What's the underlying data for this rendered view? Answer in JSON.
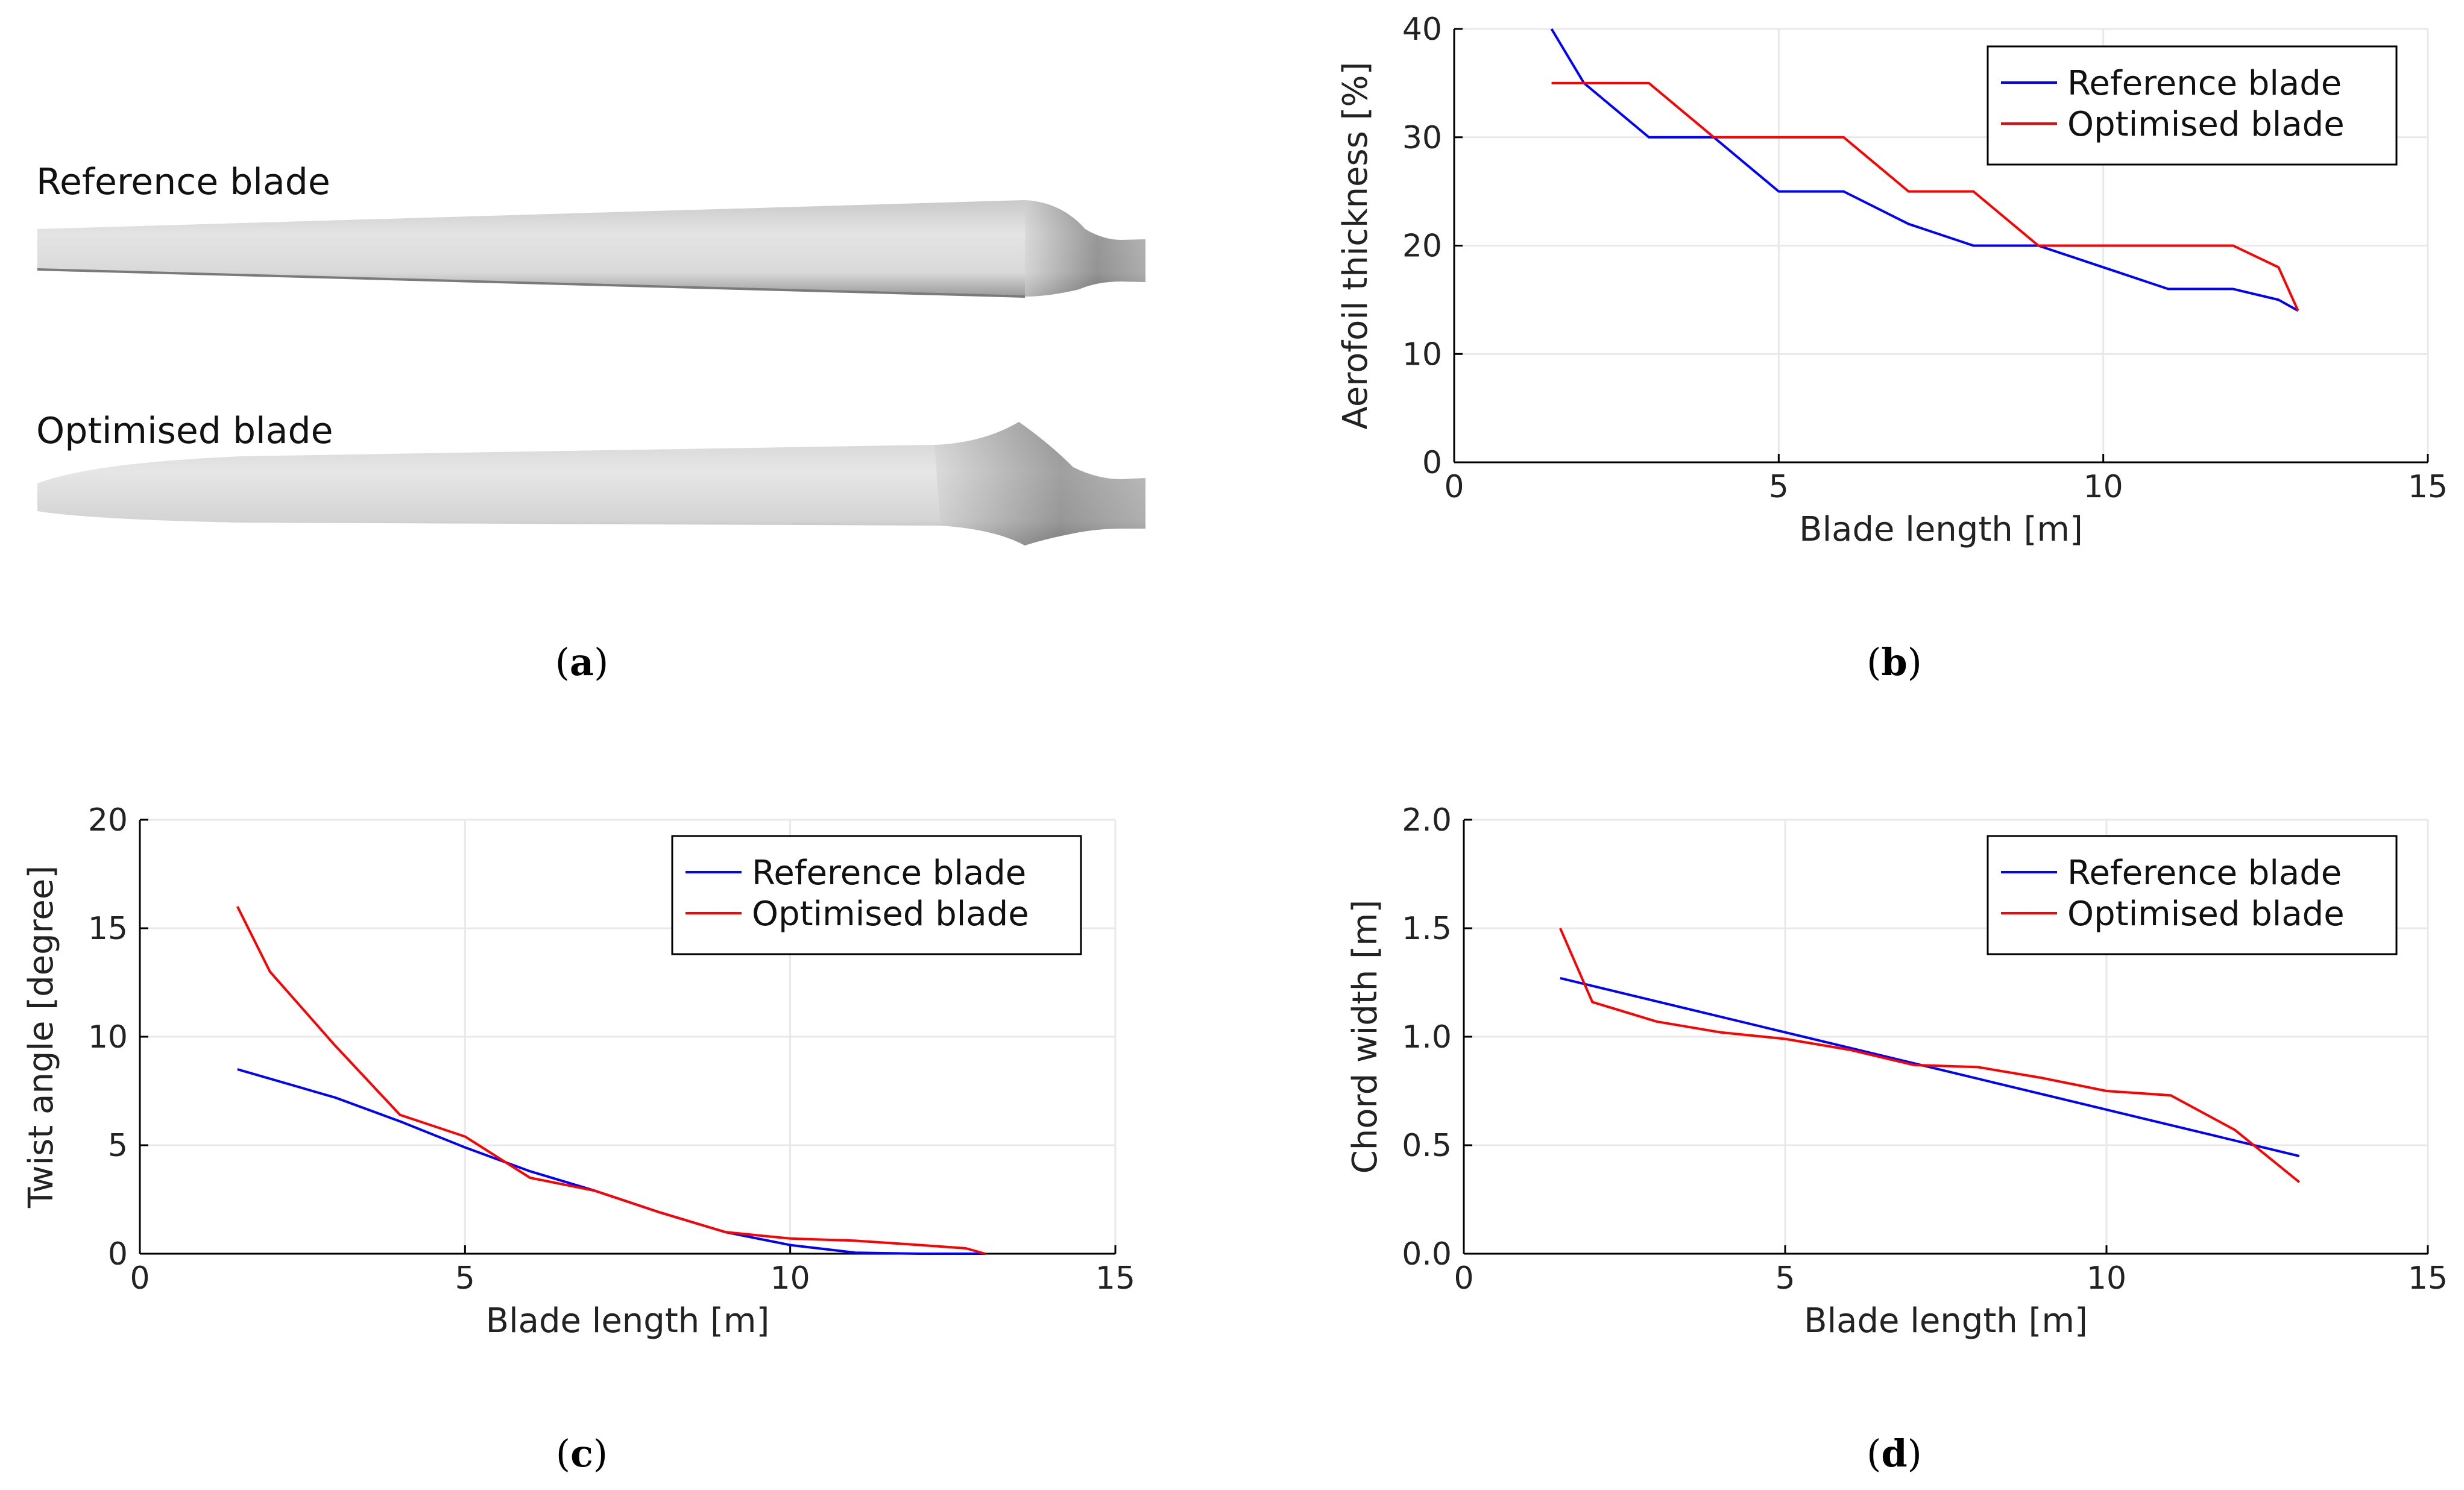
{
  "panel_a": {
    "reference_label": "Reference blade",
    "optimised_label": "Optimised blade",
    "caption": "a"
  },
  "chart_data": [
    {
      "id": "b",
      "type": "line",
      "caption": "b",
      "xlabel": "Blade length [m]",
      "ylabel": "Aerofoil thickness [%]",
      "xlim": [
        0,
        15
      ],
      "ylim": [
        0,
        40
      ],
      "xticks": [
        0,
        5,
        10,
        15
      ],
      "yticks": [
        0,
        10,
        20,
        30,
        40
      ],
      "grid": true,
      "legend_position": "top-right",
      "series": [
        {
          "name": "Reference blade",
          "color": "#0000ff",
          "x": [
            1.5,
            2,
            3,
            4,
            5,
            6,
            7,
            8,
            9,
            10,
            11,
            12,
            12.7,
            13
          ],
          "y": [
            40,
            35,
            30,
            30,
            25,
            25,
            22,
            20,
            20,
            18,
            16,
            16,
            15,
            14
          ]
        },
        {
          "name": "Optimised blade",
          "color": "#ff0000",
          "x": [
            1.5,
            3,
            4,
            6,
            7,
            8,
            9,
            12,
            12.7,
            13
          ],
          "y": [
            35,
            35,
            30,
            30,
            25,
            25,
            20,
            20,
            18,
            14
          ]
        }
      ]
    },
    {
      "id": "c",
      "type": "line",
      "caption": "c",
      "xlabel": "Blade length [m]",
      "ylabel": "Twist angle [degree]",
      "xlim": [
        0,
        15
      ],
      "ylim": [
        0,
        20
      ],
      "xticks": [
        0,
        5,
        10,
        15
      ],
      "yticks": [
        0,
        5,
        10,
        15,
        20
      ],
      "grid": true,
      "legend_position": "top-right",
      "series": [
        {
          "name": "Reference blade",
          "color": "#0000ff",
          "x": [
            1.5,
            3,
            4,
            5,
            6,
            7,
            8,
            9,
            10,
            11,
            12,
            13
          ],
          "y": [
            8.5,
            7.2,
            6.1,
            4.9,
            3.8,
            2.9,
            1.9,
            1.0,
            0.4,
            0.05,
            0.0,
            0.0
          ]
        },
        {
          "name": "Optimised blade",
          "color": "#ff0000",
          "x": [
            1.5,
            2,
            3,
            4,
            5,
            6,
            7,
            8,
            9,
            10,
            11,
            12,
            12.7,
            13
          ],
          "y": [
            16,
            13,
            9.6,
            6.4,
            5.4,
            3.5,
            2.9,
            1.9,
            1.0,
            0.7,
            0.6,
            0.4,
            0.25,
            0.0
          ]
        }
      ]
    },
    {
      "id": "d",
      "type": "line",
      "caption": "d",
      "xlabel": "Blade length [m]",
      "ylabel": "Chord width [m]",
      "xlim": [
        0,
        15
      ],
      "ylim": [
        0,
        2
      ],
      "xticks": [
        0,
        5,
        10,
        15
      ],
      "yticks": [
        0,
        0.5,
        1,
        1.5,
        2
      ],
      "ytick_labels": [
        "0.0",
        "0.5",
        "1.0",
        "1.5",
        "2.0"
      ],
      "grid": true,
      "legend_position": "top-right",
      "series": [
        {
          "name": "Reference blade",
          "color": "#0000ff",
          "x": [
            1.5,
            13
          ],
          "y": [
            1.27,
            0.45
          ]
        },
        {
          "name": "Optimised blade",
          "color": "#ff0000",
          "x": [
            1.5,
            2,
            3,
            4,
            5,
            6,
            7,
            8,
            9,
            10,
            11,
            12,
            13
          ],
          "y": [
            1.5,
            1.16,
            1.07,
            1.02,
            0.99,
            0.94,
            0.87,
            0.86,
            0.81,
            0.75,
            0.73,
            0.57,
            0.33
          ]
        }
      ]
    }
  ]
}
